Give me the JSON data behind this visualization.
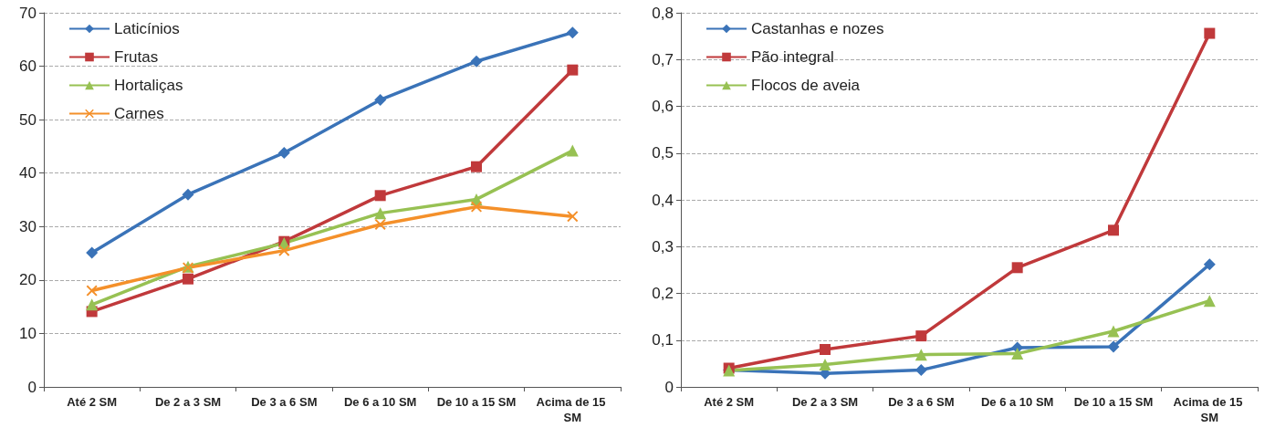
{
  "chart_data": [
    {
      "type": "line",
      "categories": [
        "Até 2 SM",
        "De 2 a 3 SM",
        "De 3 a 6 SM",
        "De 6 a 10 SM",
        "De 10 a 15 SM",
        "Acima de 15 SM"
      ],
      "series": [
        {
          "name": "Laticínios",
          "color": "#3a73b8",
          "marker": "diamond",
          "values": [
            25.1,
            36,
            43.8,
            53.7,
            60.9,
            66.3
          ]
        },
        {
          "name": "Frutas",
          "color": "#c0393b",
          "marker": "square",
          "values": [
            14.1,
            20.2,
            27.2,
            35.8,
            41.2,
            59.3
          ]
        },
        {
          "name": "Hortaliças",
          "color": "#97c153",
          "marker": "triangle",
          "values": [
            15.4,
            22.5,
            26.9,
            32.5,
            35.1,
            44.2
          ]
        },
        {
          "name": "Carnes",
          "color": "#f4902a",
          "marker": "cross",
          "values": [
            18,
            22.3,
            25.5,
            30.4,
            33.7,
            31.9
          ]
        }
      ],
      "ylim": [
        0,
        70
      ],
      "yticks": [
        0,
        10,
        20,
        30,
        40,
        50,
        60,
        70
      ],
      "grid": "y",
      "legend": "top left",
      "line_style": "solid"
    },
    {
      "type": "line",
      "categories": [
        "Até 2 SM",
        "De 2 a 3 SM",
        "De 3 a 6 SM",
        "De 6 a 10 SM",
        "De 10 a 15 SM",
        "Acima de 15 SM"
      ],
      "series": [
        {
          "name": "Castanhas e nozes",
          "color": "#3a73b8",
          "marker": "diamond",
          "values": [
            0.036,
            0.029,
            0.036,
            0.084,
            0.086,
            0.262
          ]
        },
        {
          "name": "Pão integral",
          "color": "#c0393b",
          "marker": "square",
          "values": [
            0.04,
            0.08,
            0.109,
            0.255,
            0.335,
            0.756
          ]
        },
        {
          "name": "Flocos de aveia",
          "color": "#97c153",
          "marker": "triangle",
          "values": [
            0.035,
            0.048,
            0.069,
            0.071,
            0.119,
            0.184
          ]
        }
      ],
      "ylim": [
        0,
        0.8
      ],
      "yticks": [
        0,
        {
          "value": 0.1,
          "label": "0,1"
        },
        {
          "value": 0.2,
          "label": "0,2"
        },
        {
          "value": 0.3,
          "label": "0,3"
        },
        {
          "value": 0.4,
          "label": "0,4"
        },
        {
          "value": 0.5,
          "label": "0,5"
        },
        {
          "value": 0.6,
          "label": "0,6"
        },
        {
          "value": 0.7,
          "label": "0,7"
        },
        {
          "value": 0.8,
          "label": "0,8"
        }
      ],
      "grid": "y",
      "legend": "top left",
      "line_style": "solid"
    }
  ]
}
